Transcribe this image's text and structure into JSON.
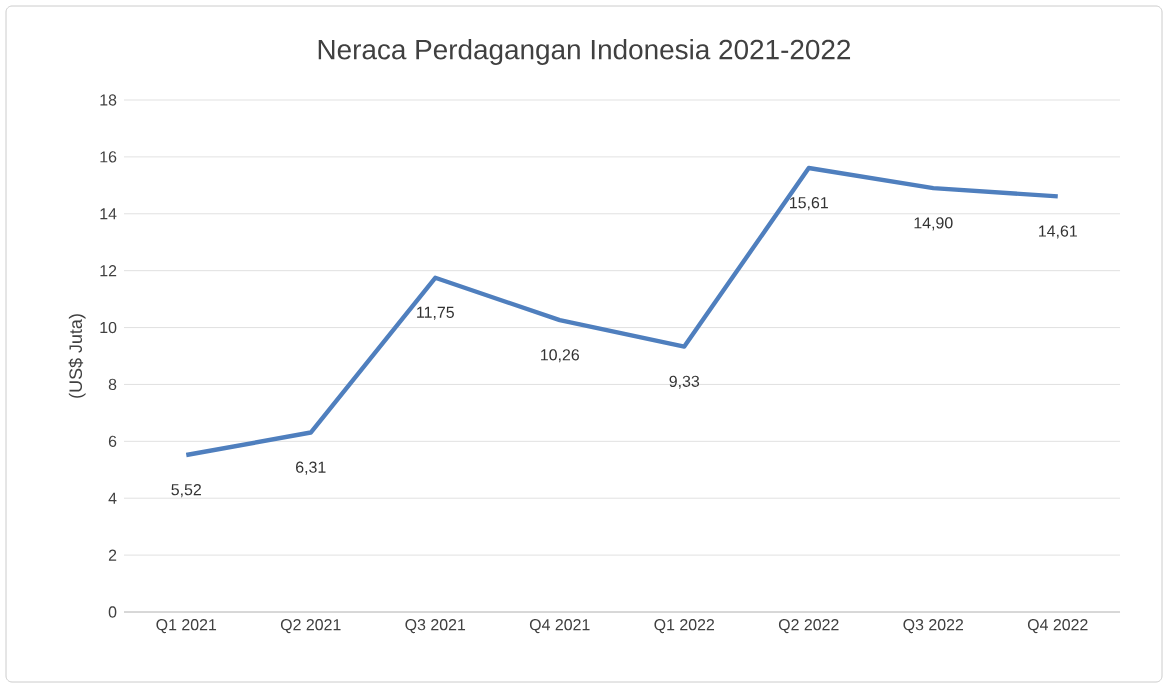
{
  "chart_data": {
    "type": "line",
    "title": "Neraca Perdagangan Indonesia 2021-2022",
    "ylabel": "(US$ Juta)",
    "categories": [
      "Q1 2021",
      "Q2 2021",
      "Q3 2021",
      "Q4 2021",
      "Q1 2022",
      "Q2 2022",
      "Q3 2022",
      "Q4 2022"
    ],
    "values": [
      5.52,
      6.31,
      11.75,
      10.26,
      9.33,
      15.61,
      14.9,
      14.61
    ],
    "value_labels": [
      "5,52",
      "6,31",
      "11,75",
      "10,26",
      "9,33",
      "15,61",
      "14,90",
      "14,61"
    ],
    "color": "#4f7fbe",
    "ylim": [
      0,
      18
    ],
    "yticks": [
      0,
      2,
      4,
      6,
      8,
      10,
      12,
      14,
      16,
      18
    ],
    "grid": "y",
    "marker": "none",
    "line_style": "solid"
  }
}
